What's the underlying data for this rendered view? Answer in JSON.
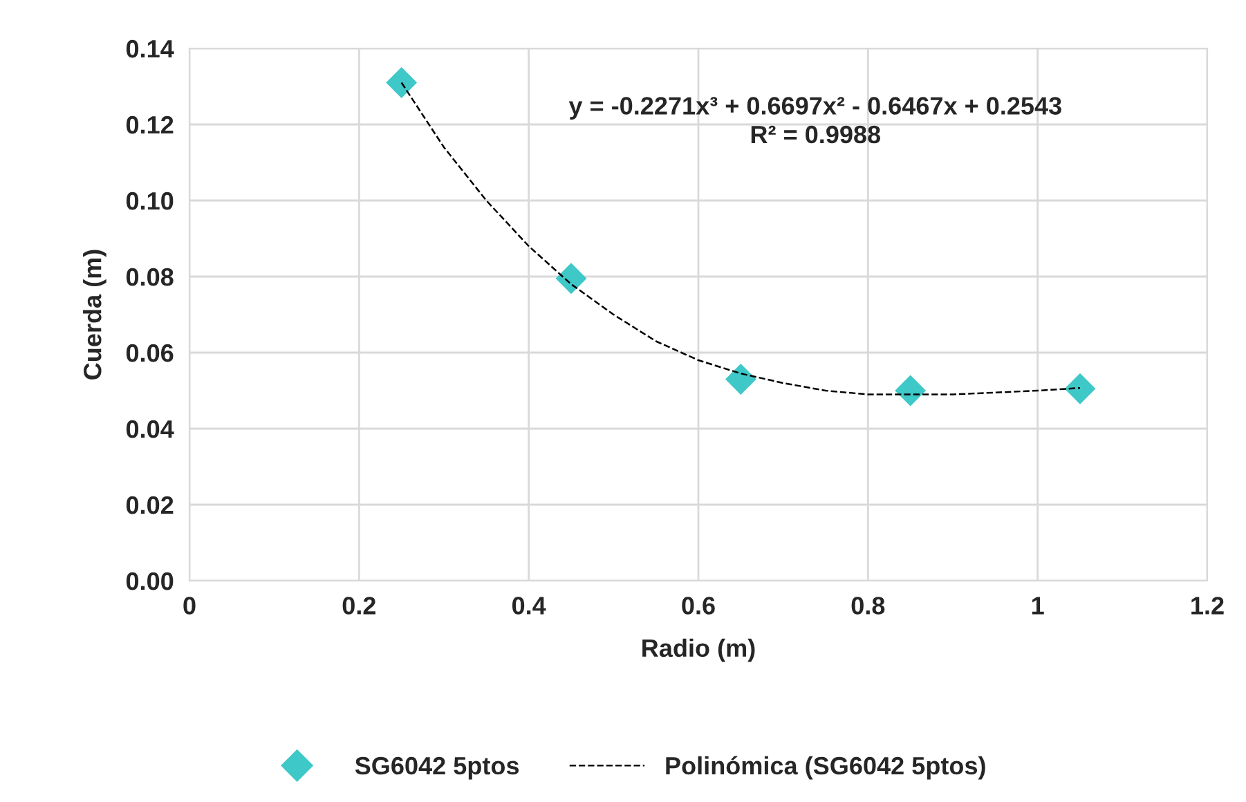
{
  "chart_data": {
    "type": "scatter",
    "xlabel": "Radio (m)",
    "ylabel": "Cuerda (m)",
    "annotations": [
      "y = -0.2271x³ + 0.6697x² - 0.6467x + 0.2543\nR² = 0.9988"
    ],
    "series": [
      {
        "name": "SG6042 5ptos",
        "color": "#3ec8c8",
        "marker": "diamond",
        "x": [
          0.25,
          0.45,
          0.65,
          0.85,
          1.05
        ],
        "values": [
          0.131,
          0.0795,
          0.053,
          0.05,
          0.0505
        ]
      },
      {
        "name": "Polinómica (SG6042 5ptos)",
        "type": "line",
        "color": "#000000",
        "line_style": "dashed",
        "marker": "none",
        "x": [
          0.25,
          0.3,
          0.35,
          0.4,
          0.45,
          0.5,
          0.55,
          0.6,
          0.65,
          0.7,
          0.75,
          0.8,
          0.85,
          0.9,
          0.95,
          1.0,
          1.05
        ],
        "values": [
          0.131,
          0.114,
          0.1,
          0.088,
          0.078,
          0.07,
          0.063,
          0.058,
          0.0545,
          0.052,
          0.05,
          0.049,
          0.049,
          0.049,
          0.0495,
          0.05,
          0.0507
        ]
      }
    ],
    "xlim": [
      0,
      1.2
    ],
    "xticks": [
      0,
      0.2,
      0.4,
      0.6,
      0.8,
      1,
      1.2
    ],
    "ylim": [
      0,
      0.14
    ],
    "yticks": [
      {
        "value": 0,
        "label": "0.00"
      },
      {
        "value": 0.02,
        "label": "0.02"
      },
      {
        "value": 0.04,
        "label": "0.04"
      },
      {
        "value": 0.06,
        "label": "0.06"
      },
      {
        "value": 0.08,
        "label": "0.08"
      },
      {
        "value": 0.1,
        "label": "0.10"
      },
      {
        "value": 0.12,
        "label": "0.12"
      },
      {
        "value": 0.14,
        "label": "0.14"
      }
    ],
    "grid": true,
    "legend": "bottom"
  }
}
